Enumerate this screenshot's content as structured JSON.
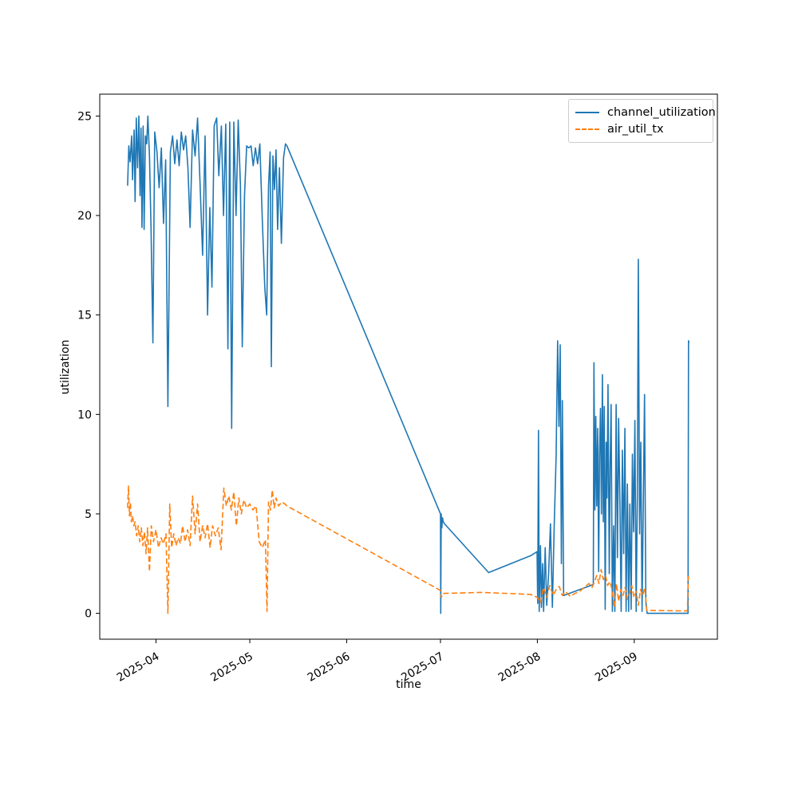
{
  "chart_data": {
    "type": "line",
    "title": "",
    "xlabel": "time",
    "ylabel": "utilization",
    "x_unit": "days since 2025-03-20",
    "xlim": [
      -6,
      191.6
    ],
    "ylim": [
      -1.3,
      26.1
    ],
    "grid": false,
    "x_tick_positions": [
      12,
      42,
      73,
      103,
      134,
      165
    ],
    "x_tick_labels": [
      "2025-04",
      "2025-05",
      "2025-06",
      "2025-07",
      "2025-08",
      "2025-09"
    ],
    "y_ticks": [
      0,
      5,
      10,
      15,
      20,
      25
    ],
    "legend": {
      "position": "upper right",
      "entries": [
        {
          "label": "channel_utilization",
          "color": "#1f77b4",
          "style": "solid"
        },
        {
          "label": "air_util_tx",
          "color": "#ff7f0e",
          "style": "dashed"
        }
      ]
    },
    "series": [
      {
        "name": "channel_utilization",
        "color": "#1f77b4",
        "line_style": "solid",
        "points": [
          [
            2.9,
            21.5
          ],
          [
            3.3,
            23.5
          ],
          [
            3.7,
            22.7
          ],
          [
            4.2,
            24.0
          ],
          [
            4.5,
            21.8
          ],
          [
            5.0,
            24.3
          ],
          [
            5.3,
            20.7
          ],
          [
            5.7,
            24.9
          ],
          [
            6.1,
            22.4
          ],
          [
            6.5,
            25.0
          ],
          [
            6.9,
            21.0
          ],
          [
            7.2,
            24.4
          ],
          [
            7.5,
            19.4
          ],
          [
            7.9,
            24.5
          ],
          [
            8.2,
            19.3
          ],
          [
            8.6,
            24.0
          ],
          [
            9.0,
            23.6
          ],
          [
            9.4,
            25.0
          ],
          [
            9.9,
            23.0
          ],
          [
            10.4,
            19.5
          ],
          [
            11.0,
            13.6
          ],
          [
            11.6,
            24.2
          ],
          [
            12.3,
            23.2
          ],
          [
            13.0,
            21.4
          ],
          [
            13.7,
            23.4
          ],
          [
            14.4,
            19.6
          ],
          [
            15.1,
            22.8
          ],
          [
            15.8,
            10.4
          ],
          [
            16.6,
            23.2
          ],
          [
            17.3,
            24.0
          ],
          [
            18.0,
            22.6
          ],
          [
            18.7,
            23.8
          ],
          [
            19.4,
            22.5
          ],
          [
            20.1,
            24.2
          ],
          [
            20.8,
            23.3
          ],
          [
            21.5,
            24.0
          ],
          [
            22.2,
            22.4
          ],
          [
            22.9,
            19.4
          ],
          [
            23.7,
            24.3
          ],
          [
            24.5,
            23.0
          ],
          [
            25.3,
            24.9
          ],
          [
            26.1,
            21.6
          ],
          [
            26.9,
            18.0
          ],
          [
            27.7,
            24.0
          ],
          [
            28.5,
            15.0
          ],
          [
            29.2,
            20.4
          ],
          [
            29.9,
            16.4
          ],
          [
            30.6,
            24.5
          ],
          [
            31.4,
            24.9
          ],
          [
            32.1,
            22.0
          ],
          [
            32.9,
            24.5
          ],
          [
            33.6,
            20.0
          ],
          [
            34.3,
            24.6
          ],
          [
            35.0,
            13.3
          ],
          [
            35.6,
            24.7
          ],
          [
            36.2,
            9.3
          ],
          [
            36.9,
            24.7
          ],
          [
            37.6,
            20.0
          ],
          [
            38.3,
            24.8
          ],
          [
            39.0,
            21.5
          ],
          [
            39.6,
            13.4
          ],
          [
            40.3,
            21.0
          ],
          [
            41.0,
            23.5
          ],
          [
            41.7,
            23.4
          ],
          [
            42.4,
            23.5
          ],
          [
            43.1,
            22.5
          ],
          [
            43.8,
            23.4
          ],
          [
            44.5,
            22.6
          ],
          [
            45.2,
            23.6
          ],
          [
            46.0,
            19.8
          ],
          [
            46.8,
            16.4
          ],
          [
            47.4,
            15.0
          ],
          [
            48.0,
            21.5
          ],
          [
            48.5,
            23.2
          ],
          [
            48.9,
            12.4
          ],
          [
            49.4,
            23.0
          ],
          [
            49.9,
            21.3
          ],
          [
            50.4,
            23.3
          ],
          [
            50.9,
            19.3
          ],
          [
            51.5,
            22.4
          ],
          [
            52.1,
            18.6
          ],
          [
            52.8,
            22.9
          ],
          [
            53.4,
            23.6
          ],
          [
            53.9,
            23.5
          ],
          [
            103.0,
            5.0
          ],
          [
            103.1,
            0.0
          ],
          [
            103.25,
            5.0
          ],
          [
            103.45,
            4.3
          ],
          [
            103.65,
            4.8
          ],
          [
            103.9,
            4.6
          ],
          [
            104.3,
            4.5
          ],
          [
            118.4,
            2.05
          ],
          [
            131.9,
            2.9
          ],
          [
            133.9,
            3.1
          ],
          [
            134.1,
            0.5
          ],
          [
            134.35,
            9.2
          ],
          [
            134.6,
            0.1
          ],
          [
            135.0,
            3.4
          ],
          [
            135.3,
            0.3
          ],
          [
            135.7,
            2.5
          ],
          [
            136.0,
            0.1
          ],
          [
            136.5,
            3.3
          ],
          [
            137.0,
            0.4
          ],
          [
            137.6,
            2.0
          ],
          [
            138.2,
            4.5
          ],
          [
            138.8,
            0.3
          ],
          [
            139.4,
            4.4
          ],
          [
            140.0,
            7.9
          ],
          [
            140.5,
            13.7
          ],
          [
            140.9,
            9.4
          ],
          [
            141.3,
            13.5
          ],
          [
            141.7,
            2.5
          ],
          [
            142.0,
            10.7
          ],
          [
            142.4,
            0.9
          ],
          [
            151.9,
            1.45
          ],
          [
            152.1,
            12.6
          ],
          [
            152.4,
            5.2
          ],
          [
            152.7,
            9.9
          ],
          [
            153.0,
            5.4
          ],
          [
            153.3,
            9.3
          ],
          [
            153.6,
            2.1
          ],
          [
            153.9,
            8.0
          ],
          [
            154.2,
            10.3
          ],
          [
            154.5,
            5.0
          ],
          [
            154.8,
            12.0
          ],
          [
            155.1,
            4.6
          ],
          [
            155.4,
            10.4
          ],
          [
            155.7,
            0.2
          ],
          [
            156.0,
            8.6
          ],
          [
            156.3,
            5.8
          ],
          [
            156.6,
            11.5
          ],
          [
            157.0,
            2.0
          ],
          [
            157.3,
            7.4
          ],
          [
            157.6,
            10.5
          ],
          [
            158.0,
            0.1
          ],
          [
            158.4,
            4.4
          ],
          [
            158.8,
            0.1
          ],
          [
            159.2,
            10.5
          ],
          [
            159.6,
            2.8
          ],
          [
            160.0,
            9.8
          ],
          [
            160.4,
            5.6
          ],
          [
            160.8,
            0.1
          ],
          [
            161.2,
            8.2
          ],
          [
            161.6,
            3.0
          ],
          [
            162.0,
            9.3
          ],
          [
            162.4,
            0.1
          ],
          [
            162.8,
            6.5
          ],
          [
            163.2,
            0.1
          ],
          [
            163.6,
            5.5
          ],
          [
            164.0,
            0.2
          ],
          [
            164.4,
            8.0
          ],
          [
            164.8,
            4.1
          ],
          [
            165.2,
            9.7
          ],
          [
            165.6,
            0.1
          ],
          [
            166.0,
            6.0
          ],
          [
            166.3,
            17.8
          ],
          [
            166.7,
            4.0
          ],
          [
            167.1,
            8.6
          ],
          [
            167.5,
            0.1
          ],
          [
            167.9,
            5.7
          ],
          [
            168.3,
            11.0
          ],
          [
            168.7,
            0.6
          ],
          [
            169.1,
            0.0
          ],
          [
            182.2,
            0.0
          ],
          [
            182.35,
            13.7
          ],
          [
            182.5,
            13.6
          ]
        ]
      },
      {
        "name": "air_util_tx",
        "color": "#ff7f0e",
        "line_style": "dashed",
        "points": [
          [
            2.9,
            5.3
          ],
          [
            3.2,
            6.4
          ],
          [
            3.5,
            4.9
          ],
          [
            3.8,
            5.6
          ],
          [
            4.1,
            4.6
          ],
          [
            4.5,
            4.9
          ],
          [
            4.9,
            4.4
          ],
          [
            5.3,
            4.6
          ],
          [
            5.8,
            3.9
          ],
          [
            6.3,
            4.4
          ],
          [
            6.8,
            3.6
          ],
          [
            7.3,
            4.3
          ],
          [
            7.8,
            3.4
          ],
          [
            8.3,
            4.1
          ],
          [
            8.8,
            3.0
          ],
          [
            9.3,
            4.3
          ],
          [
            9.9,
            2.1
          ],
          [
            10.5,
            4.4
          ],
          [
            11.2,
            3.6
          ],
          [
            12.0,
            4.2
          ],
          [
            12.8,
            3.3
          ],
          [
            13.6,
            3.8
          ],
          [
            14.4,
            3.5
          ],
          [
            15.2,
            4.0
          ],
          [
            15.8,
            0.0
          ],
          [
            16.4,
            5.5
          ],
          [
            17.0,
            3.3
          ],
          [
            17.7,
            4.0
          ],
          [
            18.4,
            3.4
          ],
          [
            19.1,
            3.8
          ],
          [
            19.8,
            3.5
          ],
          [
            20.5,
            4.4
          ],
          [
            21.3,
            3.6
          ],
          [
            22.1,
            4.2
          ],
          [
            22.9,
            3.4
          ],
          [
            23.7,
            5.9
          ],
          [
            24.5,
            4.0
          ],
          [
            25.3,
            5.5
          ],
          [
            26.1,
            3.6
          ],
          [
            26.9,
            4.4
          ],
          [
            27.7,
            3.8
          ],
          [
            28.5,
            4.5
          ],
          [
            29.3,
            3.3
          ],
          [
            30.1,
            4.4
          ],
          [
            31.0,
            3.9
          ],
          [
            31.9,
            4.3
          ],
          [
            32.8,
            3.2
          ],
          [
            33.7,
            6.3
          ],
          [
            34.5,
            5.4
          ],
          [
            35.3,
            5.9
          ],
          [
            36.1,
            5.2
          ],
          [
            36.9,
            6.1
          ],
          [
            37.7,
            4.4
          ],
          [
            38.5,
            5.8
          ],
          [
            39.3,
            5.0
          ],
          [
            40.1,
            5.7
          ],
          [
            41.0,
            5.3
          ],
          [
            42.0,
            5.5
          ],
          [
            43.0,
            5.2
          ],
          [
            44.0,
            5.4
          ],
          [
            45.0,
            3.6
          ],
          [
            46.0,
            3.3
          ],
          [
            47.0,
            3.7
          ],
          [
            47.5,
            0.1
          ],
          [
            48.0,
            5.6
          ],
          [
            48.6,
            5.2
          ],
          [
            49.2,
            6.2
          ],
          [
            49.8,
            5.3
          ],
          [
            50.4,
            5.8
          ],
          [
            51.2,
            5.4
          ],
          [
            52.2,
            5.6
          ],
          [
            53.2,
            5.5
          ],
          [
            53.9,
            5.4
          ],
          [
            103.0,
            1.15
          ],
          [
            103.3,
            0.8
          ],
          [
            103.6,
            1.0
          ],
          [
            115.8,
            1.05
          ],
          [
            125.0,
            1.0
          ],
          [
            131.9,
            0.95
          ],
          [
            134.0,
            0.8
          ],
          [
            135.0,
            0.55
          ],
          [
            136.0,
            1.3
          ],
          [
            137.0,
            0.8
          ],
          [
            138.0,
            1.4
          ],
          [
            139.0,
            0.9
          ],
          [
            140.0,
            1.2
          ],
          [
            141.0,
            1.35
          ],
          [
            142.0,
            0.9
          ],
          [
            143.0,
            1.1
          ],
          [
            144.5,
            0.85
          ],
          [
            146.0,
            1.0
          ],
          [
            147.5,
            1.1
          ],
          [
            149.0,
            1.3
          ],
          [
            150.5,
            1.5
          ],
          [
            151.5,
            1.3
          ],
          [
            152.3,
            1.6
          ],
          [
            153.0,
            1.9
          ],
          [
            153.7,
            1.5
          ],
          [
            154.4,
            2.2
          ],
          [
            155.1,
            1.7
          ],
          [
            155.8,
            1.9
          ],
          [
            156.5,
            1.4
          ],
          [
            157.2,
            1.6
          ],
          [
            157.9,
            1.2
          ],
          [
            158.6,
            0.3
          ],
          [
            159.3,
            1.5
          ],
          [
            160.0,
            0.6
          ],
          [
            160.7,
            1.2
          ],
          [
            161.4,
            0.9
          ],
          [
            162.1,
            1.3
          ],
          [
            162.8,
            0.7
          ],
          [
            163.5,
            1.0
          ],
          [
            164.2,
            1.4
          ],
          [
            164.9,
            0.8
          ],
          [
            165.6,
            1.1
          ],
          [
            166.3,
            0.4
          ],
          [
            167.0,
            1.2
          ],
          [
            167.7,
            0.9
          ],
          [
            168.4,
            1.3
          ],
          [
            169.0,
            0.15
          ],
          [
            182.0,
            0.12
          ],
          [
            182.3,
            1.85
          ],
          [
            182.5,
            1.7
          ]
        ]
      }
    ]
  }
}
